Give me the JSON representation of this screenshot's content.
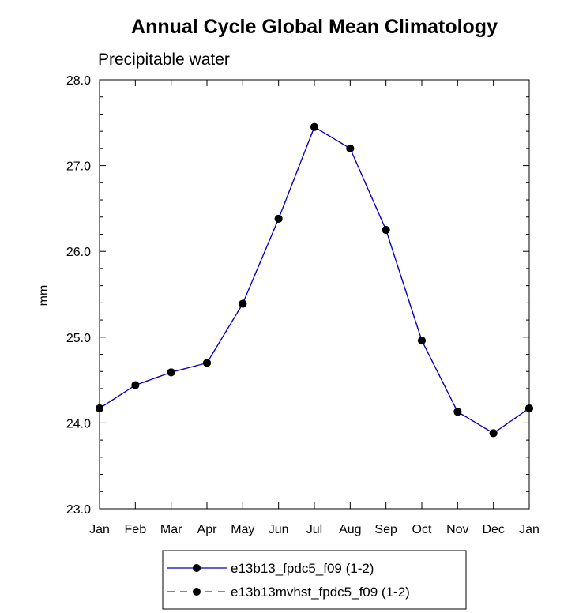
{
  "chart_data": {
    "type": "line",
    "title": "Annual Cycle Global Mean Climatology",
    "subtitle": "Precipitable water",
    "xlabel": "",
    "ylabel": "mm",
    "categories": [
      "Jan",
      "Feb",
      "Mar",
      "Apr",
      "May",
      "Jun",
      "Jul",
      "Aug",
      "Sep",
      "Oct",
      "Nov",
      "Dec",
      "Jan"
    ],
    "ylim": [
      23.0,
      28.0
    ],
    "yticks": [
      23.0,
      24.0,
      25.0,
      26.0,
      27.0,
      28.0
    ],
    "ytick_labels": [
      "23.0",
      "24.0",
      "25.0",
      "26.0",
      "27.0",
      "28.0"
    ],
    "yminor_step": 0.2,
    "grid": false,
    "legend_position": "bottom-center",
    "series": [
      {
        "name": "e13b13_fpdc5_f09 (1-2)",
        "color": "#0000cc",
        "line_style": "solid",
        "marker": "circle",
        "values": [
          24.17,
          24.44,
          24.59,
          24.7,
          25.39,
          26.38,
          27.45,
          27.2,
          26.25,
          24.96,
          24.13,
          23.88,
          24.17
        ]
      },
      {
        "name": "e13b13mvhst_fpdc5_f09 (1-2)",
        "color": "#cc0000",
        "line_style": "dashed",
        "marker": "circle",
        "values": [
          24.17,
          24.44,
          24.59,
          24.7,
          25.39,
          26.38,
          27.45,
          27.2,
          26.25,
          24.96,
          24.13,
          23.88,
          24.17
        ]
      }
    ]
  }
}
